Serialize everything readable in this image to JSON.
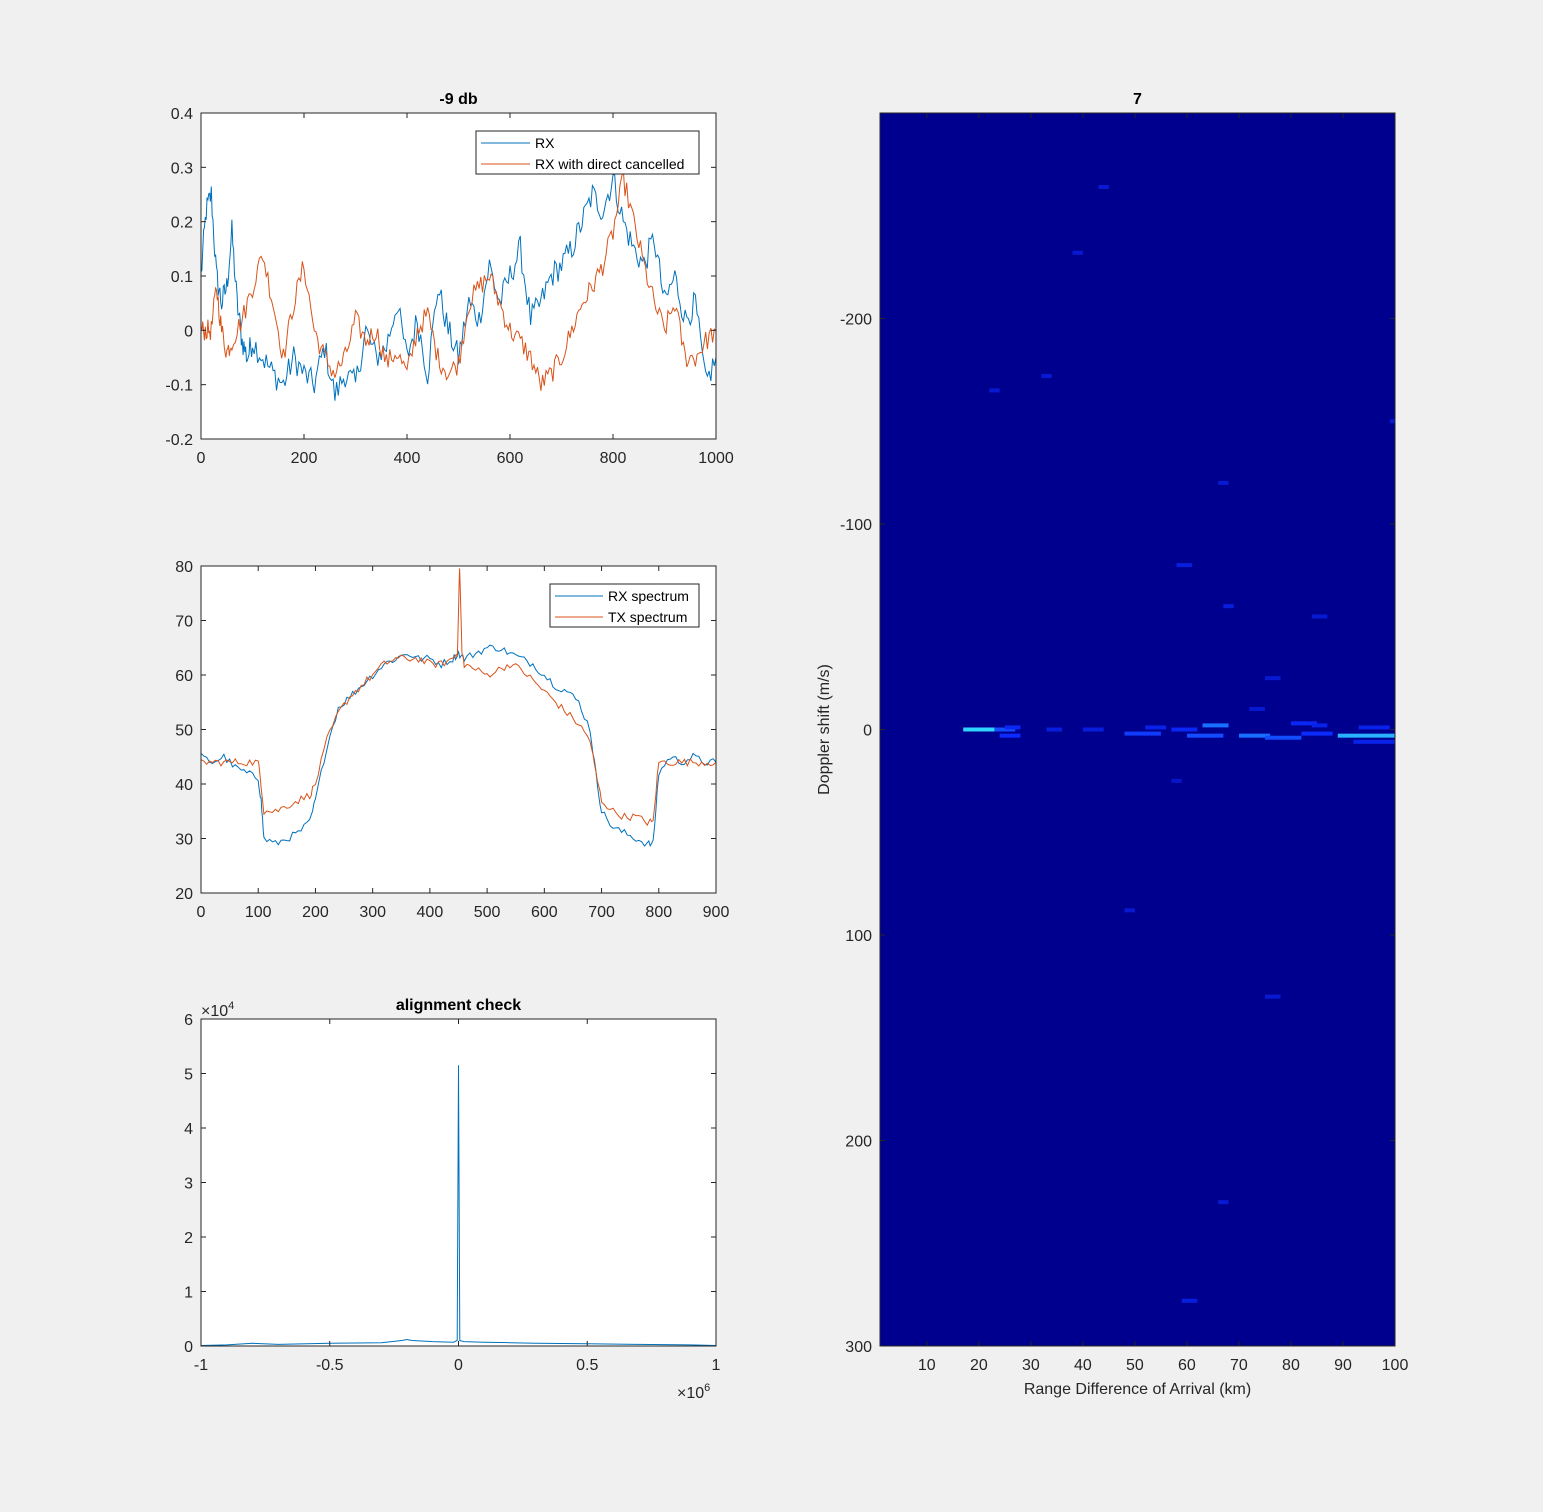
{
  "colors": {
    "figure_bg": "#f0f0f0",
    "axes_bg": "#ffffff",
    "axis": "#262626",
    "series1": "#0072bd",
    "series2": "#d95319",
    "heatmap_bg": "#00008f",
    "heatmap_mid": "#0b2bff",
    "heatmap_high": "#2fd4ff"
  },
  "chart_data": [
    {
      "type": "line",
      "title": "-9 db",
      "xlim": [
        0,
        1000
      ],
      "ylim": [
        -0.2,
        0.4
      ],
      "xticks": [
        0,
        200,
        400,
        600,
        800,
        1000
      ],
      "yticks": [
        -0.2,
        -0.1,
        0,
        0.1,
        0.2,
        0.3,
        0.4
      ],
      "xtick_labels": [
        "0",
        "200",
        "400",
        "600",
        "800",
        "1000"
      ],
      "ytick_labels": [
        "-0.2",
        "-0.1",
        "0",
        "0.1",
        "0.2",
        "0.3",
        "0.4"
      ],
      "legend_position": "top-right",
      "series": [
        {
          "name": "RX",
          "x": [
            0,
            10,
            20,
            30,
            40,
            50,
            60,
            70,
            80,
            90,
            100,
            120,
            140,
            160,
            180,
            200,
            220,
            240,
            260,
            280,
            300,
            320,
            340,
            360,
            380,
            400,
            420,
            440,
            460,
            480,
            500,
            520,
            540,
            560,
            580,
            600,
            620,
            640,
            660,
            680,
            700,
            720,
            740,
            760,
            780,
            800,
            820,
            840,
            860,
            880,
            900,
            920,
            940,
            960,
            980,
            1000
          ],
          "y": [
            0.1,
            0.22,
            0.25,
            0.1,
            0.05,
            0.08,
            0.18,
            0.05,
            -0.02,
            -0.05,
            -0.02,
            -0.05,
            -0.08,
            -0.1,
            -0.05,
            -0.08,
            -0.1,
            -0.03,
            -0.12,
            -0.08,
            -0.1,
            0.0,
            -0.05,
            -0.03,
            0.05,
            -0.05,
            0.02,
            -0.08,
            0.08,
            0.0,
            -0.05,
            0.05,
            0.02,
            0.12,
            0.05,
            0.1,
            0.15,
            0.02,
            0.05,
            0.1,
            0.12,
            0.15,
            0.2,
            0.25,
            0.22,
            0.28,
            0.2,
            0.15,
            0.12,
            0.17,
            0.05,
            0.1,
            0.02,
            0.05,
            -0.1,
            -0.05
          ]
        },
        {
          "name": "RX with direct cancelled",
          "x": [
            0,
            10,
            20,
            30,
            40,
            50,
            60,
            80,
            100,
            120,
            140,
            160,
            180,
            200,
            220,
            240,
            260,
            280,
            300,
            320,
            340,
            360,
            380,
            400,
            420,
            440,
            460,
            480,
            500,
            520,
            540,
            560,
            580,
            600,
            620,
            640,
            660,
            680,
            700,
            720,
            740,
            760,
            780,
            800,
            820,
            840,
            860,
            880,
            900,
            920,
            940,
            960,
            980,
            1000
          ],
          "y": [
            0.0,
            0.0,
            0.0,
            0.08,
            0.0,
            -0.04,
            -0.02,
            0.02,
            0.08,
            0.14,
            0.05,
            -0.05,
            0.05,
            0.12,
            0.0,
            -0.05,
            -0.08,
            -0.05,
            0.02,
            -0.02,
            0.0,
            -0.06,
            -0.04,
            -0.08,
            0.0,
            0.03,
            -0.05,
            -0.08,
            -0.06,
            0.05,
            0.08,
            0.1,
            0.05,
            0.0,
            -0.02,
            -0.05,
            -0.1,
            -0.08,
            -0.05,
            0.0,
            0.05,
            0.08,
            0.12,
            0.18,
            0.28,
            0.2,
            0.12,
            0.05,
            0.0,
            0.05,
            -0.05,
            -0.05,
            -0.02,
            0.0
          ]
        }
      ]
    },
    {
      "type": "line",
      "title": "",
      "xlim": [
        0,
        900
      ],
      "ylim": [
        20,
        80
      ],
      "xticks": [
        0,
        100,
        200,
        300,
        400,
        500,
        600,
        700,
        800,
        900
      ],
      "yticks": [
        20,
        30,
        40,
        50,
        60,
        70,
        80
      ],
      "xtick_labels": [
        "0",
        "100",
        "200",
        "300",
        "400",
        "500",
        "600",
        "700",
        "800",
        "900"
      ],
      "ytick_labels": [
        "20",
        "30",
        "40",
        "50",
        "60",
        "70",
        "80"
      ],
      "legend_position": "top-right",
      "series": [
        {
          "name": "RX spectrum",
          "x": [
            0,
            20,
            40,
            60,
            80,
            100,
            105,
            110,
            130,
            150,
            170,
            190,
            200,
            220,
            240,
            260,
            280,
            300,
            320,
            340,
            360,
            380,
            400,
            420,
            440,
            450,
            460,
            480,
            500,
            520,
            540,
            560,
            580,
            600,
            620,
            640,
            660,
            680,
            690,
            700,
            720,
            740,
            760,
            780,
            790,
            800,
            820,
            840,
            860,
            880,
            900
          ],
          "y": [
            45,
            44,
            45,
            43,
            42,
            41,
            37,
            30,
            29,
            30,
            31,
            33,
            37,
            47,
            54,
            56,
            58,
            60,
            62,
            63,
            64,
            63,
            63,
            62,
            63,
            64,
            63,
            64,
            65,
            65,
            64,
            63,
            62,
            60,
            58,
            57,
            55,
            50,
            42,
            35,
            32,
            31,
            30,
            29,
            29,
            42,
            45,
            44,
            45,
            44,
            44
          ]
        },
        {
          "name": "TX spectrum",
          "x": [
            0,
            20,
            40,
            60,
            80,
            100,
            105,
            110,
            130,
            150,
            170,
            190,
            200,
            220,
            240,
            260,
            280,
            300,
            320,
            340,
            360,
            380,
            400,
            420,
            440,
            448,
            452,
            456,
            460,
            480,
            500,
            520,
            540,
            560,
            580,
            600,
            620,
            640,
            660,
            680,
            690,
            700,
            720,
            740,
            760,
            780,
            790,
            800,
            820,
            840,
            860,
            880,
            900
          ],
          "y": [
            44,
            44,
            44,
            44,
            44,
            44,
            40,
            35,
            35,
            36,
            37,
            38,
            40,
            48,
            53,
            56,
            58,
            60,
            62,
            63,
            63,
            63,
            62,
            62,
            63,
            64,
            80,
            64,
            62,
            61,
            60,
            61,
            62,
            61,
            59,
            57,
            55,
            53,
            51,
            48,
            42,
            37,
            35,
            34,
            34,
            33,
            33,
            44,
            44,
            44,
            44,
            44,
            44
          ]
        }
      ]
    },
    {
      "type": "line",
      "title": "alignment check",
      "xlim": [
        -1,
        1
      ],
      "ylim": [
        0,
        6
      ],
      "xticks": [
        -1,
        -0.5,
        0,
        0.5,
        1
      ],
      "yticks": [
        0,
        1,
        2,
        3,
        4,
        5,
        6
      ],
      "xtick_labels": [
        "-1",
        "-0.5",
        "0",
        "0.5",
        "1"
      ],
      "ytick_labels": [
        "0",
        "1",
        "2",
        "3",
        "4",
        "5",
        "6"
      ],
      "x_exponent_label": "×10",
      "x_exponent_power": "6",
      "y_exponent_label": "×10",
      "y_exponent_power": "4",
      "series": [
        {
          "x": [
            -1,
            -0.9,
            -0.8,
            -0.7,
            -0.5,
            -0.3,
            -0.22,
            -0.2,
            -0.18,
            -0.1,
            -0.02,
            -0.005,
            0,
            0.005,
            0.02,
            0.1,
            0.2,
            0.3,
            0.5,
            0.7,
            0.9,
            1
          ],
          "y": [
            0.01,
            0.02,
            0.05,
            0.03,
            0.05,
            0.06,
            0.1,
            0.12,
            0.1,
            0.08,
            0.07,
            0.1,
            5.15,
            0.1,
            0.08,
            0.07,
            0.06,
            0.05,
            0.04,
            0.03,
            0.02,
            0.01
          ]
        }
      ]
    },
    {
      "type": "heatmap",
      "title": "7",
      "xlabel": "Range Difference of Arrival (km)",
      "ylabel": "Doppler shift (m/s)",
      "xlim": [
        1,
        100
      ],
      "ylim": [
        -300,
        300
      ],
      "xticks": [
        10,
        20,
        30,
        40,
        50,
        60,
        70,
        80,
        90,
        100
      ],
      "yticks": [
        -200,
        -100,
        0,
        100,
        200,
        300
      ],
      "xtick_labels": [
        "10",
        "20",
        "30",
        "40",
        "50",
        "60",
        "70",
        "80",
        "90",
        "100"
      ],
      "ytick_labels": [
        "-200",
        "-100",
        "0",
        "100",
        "200",
        "300"
      ],
      "y_reversed": true,
      "cells": [
        {
          "x0": 17,
          "x1": 23,
          "y": 0,
          "level": 1.0
        },
        {
          "x0": 23,
          "x1": 27,
          "y": 0,
          "level": 0.6
        },
        {
          "x0": 24,
          "x1": 28,
          "y": 3,
          "level": 0.5
        },
        {
          "x0": 25,
          "x1": 28,
          "y": -1,
          "level": 0.45
        },
        {
          "x0": 33,
          "x1": 36,
          "y": 0,
          "level": 0.35
        },
        {
          "x0": 40,
          "x1": 44,
          "y": 0,
          "level": 0.35
        },
        {
          "x0": 48,
          "x1": 55,
          "y": 2,
          "level": 0.55
        },
        {
          "x0": 52,
          "x1": 56,
          "y": -1,
          "level": 0.4
        },
        {
          "x0": 57,
          "x1": 62,
          "y": 0,
          "level": 0.45
        },
        {
          "x0": 60,
          "x1": 67,
          "y": 3,
          "level": 0.6
        },
        {
          "x0": 63,
          "x1": 68,
          "y": -2,
          "level": 0.7
        },
        {
          "x0": 70,
          "x1": 76,
          "y": 3,
          "level": 0.7
        },
        {
          "x0": 75,
          "x1": 82,
          "y": 4,
          "level": 0.6
        },
        {
          "x0": 80,
          "x1": 85,
          "y": -3,
          "level": 0.45
        },
        {
          "x0": 82,
          "x1": 88,
          "y": 2,
          "level": 0.5
        },
        {
          "x0": 84,
          "x1": 87,
          "y": -2,
          "level": 0.4
        },
        {
          "x0": 89,
          "x1": 100,
          "y": 3,
          "level": 0.9
        },
        {
          "x0": 92,
          "x1": 100,
          "y": 6,
          "level": 0.4
        },
        {
          "x0": 93,
          "x1": 99,
          "y": -1,
          "level": 0.4
        },
        {
          "x0": 58,
          "x1": 61,
          "y": -80,
          "level": 0.35
        },
        {
          "x0": 67,
          "x1": 69,
          "y": -60,
          "level": 0.35
        },
        {
          "x0": 75,
          "x1": 78,
          "y": -25,
          "level": 0.3
        },
        {
          "x0": 72,
          "x1": 75,
          "y": -10,
          "level": 0.3
        },
        {
          "x0": 84,
          "x1": 87,
          "y": -55,
          "level": 0.3
        },
        {
          "x0": 66,
          "x1": 68,
          "y": -120,
          "level": 0.3
        },
        {
          "x0": 75,
          "x1": 78,
          "y": 130,
          "level": 0.3
        },
        {
          "x0": 66,
          "x1": 68,
          "y": 230,
          "level": 0.3
        },
        {
          "x0": 59,
          "x1": 62,
          "y": 278,
          "level": 0.35
        },
        {
          "x0": 32,
          "x1": 34,
          "y": -172,
          "level": 0.3
        },
        {
          "x0": 22,
          "x1": 24,
          "y": -165,
          "level": 0.3
        },
        {
          "x0": 43,
          "x1": 45,
          "y": -264,
          "level": 0.3
        },
        {
          "x0": 38,
          "x1": 40,
          "y": -232,
          "level": 0.3
        },
        {
          "x0": 48,
          "x1": 50,
          "y": 88,
          "level": 0.3
        },
        {
          "x0": 57,
          "x1": 59,
          "y": 25,
          "level": 0.25
        },
        {
          "x0": 99,
          "x1": 100,
          "y": -150,
          "level": 0.3
        }
      ]
    }
  ]
}
